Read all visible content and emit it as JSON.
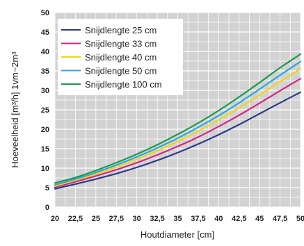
{
  "chart_data": {
    "type": "line",
    "title": "",
    "xlabel": "Houtdiameter [cm]",
    "ylabel": "Hoeveelheid [m³/h] 1vm~2m³",
    "x_ticks": [
      "20",
      "22,5",
      "25",
      "27,5",
      "30",
      "32,5",
      "35",
      "37,5",
      "40",
      "42,5",
      "45",
      "47,5",
      "50"
    ],
    "y_ticks": [
      "0",
      "5",
      "10",
      "15",
      "20",
      "25",
      "30",
      "35",
      "40",
      "45",
      "50"
    ],
    "xlim": [
      20,
      50
    ],
    "ylim": [
      0,
      50
    ],
    "grid": true,
    "legend_position": "top-left",
    "x": [
      20,
      22.5,
      25,
      27.5,
      30,
      32.5,
      35,
      37.5,
      40,
      42.5,
      45,
      47.5,
      50
    ],
    "series": [
      {
        "name": "Snijdlengte 25 cm",
        "color": "#2b3a8c",
        "values": [
          4.7,
          5.9,
          7.2,
          8.6,
          10.2,
          12.0,
          14.0,
          16.2,
          18.6,
          21.2,
          24.0,
          26.8,
          29.5
        ]
      },
      {
        "name": "Snijdlengte 33 cm",
        "color": "#d6267f",
        "values": [
          5.1,
          6.5,
          8.0,
          9.6,
          11.4,
          13.4,
          15.6,
          18.0,
          20.7,
          23.6,
          26.7,
          29.9,
          33.0
        ]
      },
      {
        "name": "Snijdlengte 40 cm",
        "color": "#f0d419",
        "values": [
          5.4,
          6.9,
          8.5,
          10.3,
          12.3,
          14.5,
          16.9,
          19.5,
          22.4,
          25.5,
          28.8,
          32.2,
          35.5
        ]
      },
      {
        "name": "Snijdlengte 50 cm",
        "color": "#2ea6dd",
        "values": [
          5.7,
          7.2,
          8.9,
          10.8,
          12.9,
          15.2,
          17.7,
          20.5,
          23.5,
          26.8,
          30.3,
          33.9,
          37.4
        ]
      },
      {
        "name": "Snijdlengte 100 cm",
        "color": "#1b9a4b",
        "values": [
          6.2,
          7.6,
          9.4,
          11.4,
          13.6,
          16.0,
          18.7,
          21.6,
          24.8,
          28.3,
          32.0,
          35.8,
          39.3
        ]
      }
    ]
  }
}
